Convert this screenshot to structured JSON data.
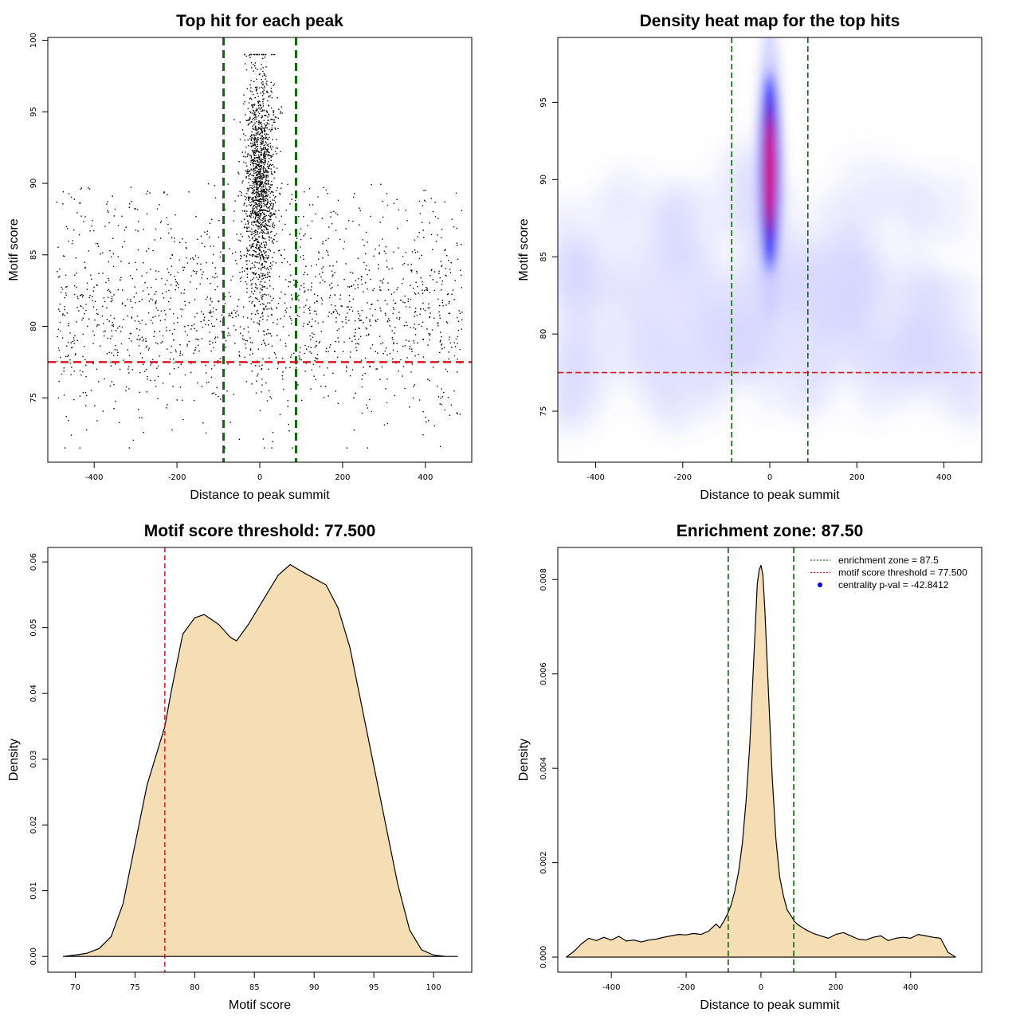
{
  "chart_data": [
    {
      "id": "p1",
      "type": "scatter",
      "title": "Top hit for each peak",
      "xlabel": "Distance to peak summit",
      "ylabel": "Motif score",
      "xlim": [
        -512,
        512
      ],
      "ylim": [
        70.5,
        100.2
      ],
      "xticks": [
        "-400",
        "-200",
        "0",
        "200",
        "400"
      ],
      "yticks": [
        "75",
        "80",
        "85",
        "90",
        "95",
        "100"
      ],
      "enrichment_zone": [
        -87.5,
        87.5
      ],
      "score_threshold": 77.5,
      "points_note": "about 3000 peak top hits spread over distance -490..490; dense central column around 0 with scores 76..99; background scores mostly 74..90",
      "line_colors": {
        "zone": "#0a6b0a",
        "threshold": "#e0141e",
        "points": "#000000"
      }
    },
    {
      "id": "p2",
      "type": "heatmap",
      "title": "Density heat map for the top hits",
      "xlabel": "Distance to peak summit",
      "ylabel": "Motif score",
      "xlim": [
        -487,
        487
      ],
      "ylim": [
        71.7,
        99.2
      ],
      "xticks": [
        "-400",
        "-200",
        "0",
        "200",
        "400"
      ],
      "yticks": [
        "75",
        "80",
        "85",
        "90",
        "95"
      ],
      "enrichment_zone": [
        -87.5,
        87.5
      ],
      "score_threshold": 77.5,
      "hotspot": {
        "x": 0,
        "y": 90.5,
        "x_sd": 18,
        "y_sd": 4.2
      },
      "palette": [
        "#ffffff",
        "#0000ff",
        "#ff0000"
      ]
    },
    {
      "id": "p3",
      "type": "area",
      "title": "Motif score threshold: 77.500",
      "xlabel": "Motif score",
      "ylabel": "Density",
      "xlim": [
        67.7,
        103.2
      ],
      "ylim": [
        -0.0024,
        0.0622
      ],
      "xticks": [
        "70",
        "75",
        "80",
        "85",
        "90",
        "95",
        "100"
      ],
      "yticks": [
        "0.00",
        "0.01",
        "0.02",
        "0.03",
        "0.04",
        "0.05",
        "0.06"
      ],
      "threshold": 77.5,
      "x": [
        69,
        70,
        71,
        72,
        73,
        74,
        75,
        76,
        77,
        77.5,
        78,
        79,
        80,
        80.8,
        82,
        83,
        83.5,
        84.5,
        86,
        87,
        88,
        89,
        90,
        91,
        92,
        93,
        94,
        95,
        96,
        97,
        98,
        99,
        100,
        101,
        102
      ],
      "values": [
        0,
        0.0002,
        0.0005,
        0.0012,
        0.003,
        0.008,
        0.017,
        0.026,
        0.032,
        0.035,
        0.04,
        0.049,
        0.0515,
        0.052,
        0.0505,
        0.0485,
        0.048,
        0.0505,
        0.055,
        0.058,
        0.0596,
        0.0585,
        0.0575,
        0.0565,
        0.053,
        0.047,
        0.038,
        0.029,
        0.02,
        0.011,
        0.004,
        0.001,
        0.0002,
        0,
        0
      ],
      "fill": "#f5deb3"
    },
    {
      "id": "p4",
      "type": "area",
      "title": "Enrichment zone: 87.50",
      "xlabel": "Distance to peak summit",
      "ylabel": "Density",
      "xlim": [
        -543,
        590
      ],
      "ylim": [
        -0.00032,
        0.00868
      ],
      "xticks": [
        "-400",
        "-200",
        "0",
        "200",
        "400"
      ],
      "yticks": [
        "0.000",
        "0.002",
        "0.004",
        "0.006",
        "0.008"
      ],
      "enrichment_zone": [
        -87.5,
        87.5
      ],
      "x": [
        -520,
        -500,
        -480,
        -460,
        -440,
        -420,
        -400,
        -380,
        -360,
        -340,
        -320,
        -300,
        -280,
        -260,
        -240,
        -220,
        -200,
        -180,
        -160,
        -140,
        -120,
        -110,
        -100,
        -90,
        -80,
        -70,
        -60,
        -50,
        -40,
        -30,
        -20,
        -10,
        -5,
        0,
        5,
        10,
        20,
        30,
        40,
        50,
        60,
        70,
        80,
        90,
        100,
        120,
        140,
        160,
        180,
        200,
        220,
        240,
        260,
        280,
        300,
        320,
        340,
        360,
        380,
        400,
        420,
        440,
        460,
        480,
        500,
        520
      ],
      "values": [
        0,
        0.00012,
        0.00028,
        0.0004,
        0.00035,
        0.00042,
        0.00036,
        0.00044,
        0.00034,
        0.00036,
        0.00032,
        0.00036,
        0.00038,
        0.00042,
        0.00045,
        0.00048,
        0.00047,
        0.0005,
        0.00048,
        0.00055,
        0.0007,
        0.00062,
        0.00075,
        0.0009,
        0.0011,
        0.0014,
        0.0018,
        0.0024,
        0.0033,
        0.0045,
        0.0062,
        0.0079,
        0.0082,
        0.0083,
        0.0081,
        0.0074,
        0.0056,
        0.0038,
        0.0025,
        0.0017,
        0.0013,
        0.001,
        0.00088,
        0.00075,
        0.00068,
        0.00058,
        0.0005,
        0.00045,
        0.0004,
        0.00048,
        0.00052,
        0.00045,
        0.00038,
        0.00036,
        0.00042,
        0.00045,
        0.00035,
        0.0004,
        0.00042,
        0.0004,
        0.00048,
        0.00045,
        0.00042,
        0.0004,
        0.0001,
        0
      ],
      "fill": "#f5deb3",
      "legend": [
        {
          "label": "enrichment zone = 87.5",
          "color": "#0a6b0a",
          "kind": "dotted"
        },
        {
          "label": "motif score threshold = 77.500",
          "color": "#e0141e",
          "kind": "dotted"
        },
        {
          "label": "centrality p-val = -42.8412",
          "color": "#0000ff",
          "kind": "point"
        }
      ]
    }
  ]
}
